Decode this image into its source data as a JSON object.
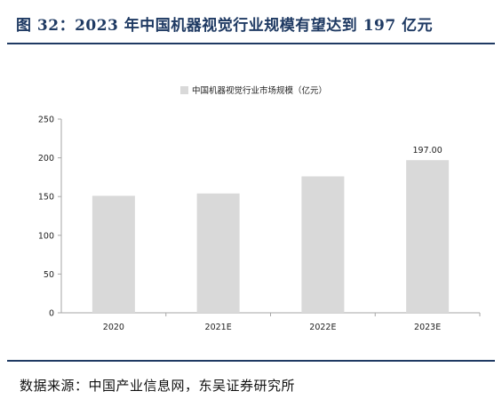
{
  "figure": {
    "title": "图 32：2023 年中国机器视觉行业规模有望达到 197 亿元",
    "source": "数据来源：中国产业信息网，东吴证券研究所"
  },
  "colors": {
    "accent": "#1f3a63",
    "bar": "#d9d9d9",
    "axis": "#a6a6a6"
  },
  "chart_data": {
    "type": "bar",
    "categories": [
      "2020",
      "2021E",
      "2022E",
      "2023E"
    ],
    "series": [
      {
        "name": "中国机器视觉行业市场规模（亿元）",
        "values": [
          151,
          154,
          176,
          197
        ]
      }
    ],
    "data_labels": [
      null,
      null,
      null,
      "197.00"
    ],
    "ylim": [
      0,
      250
    ],
    "yticks": [
      0,
      50,
      100,
      150,
      200,
      250
    ],
    "grid": false,
    "legend": "top-center"
  }
}
